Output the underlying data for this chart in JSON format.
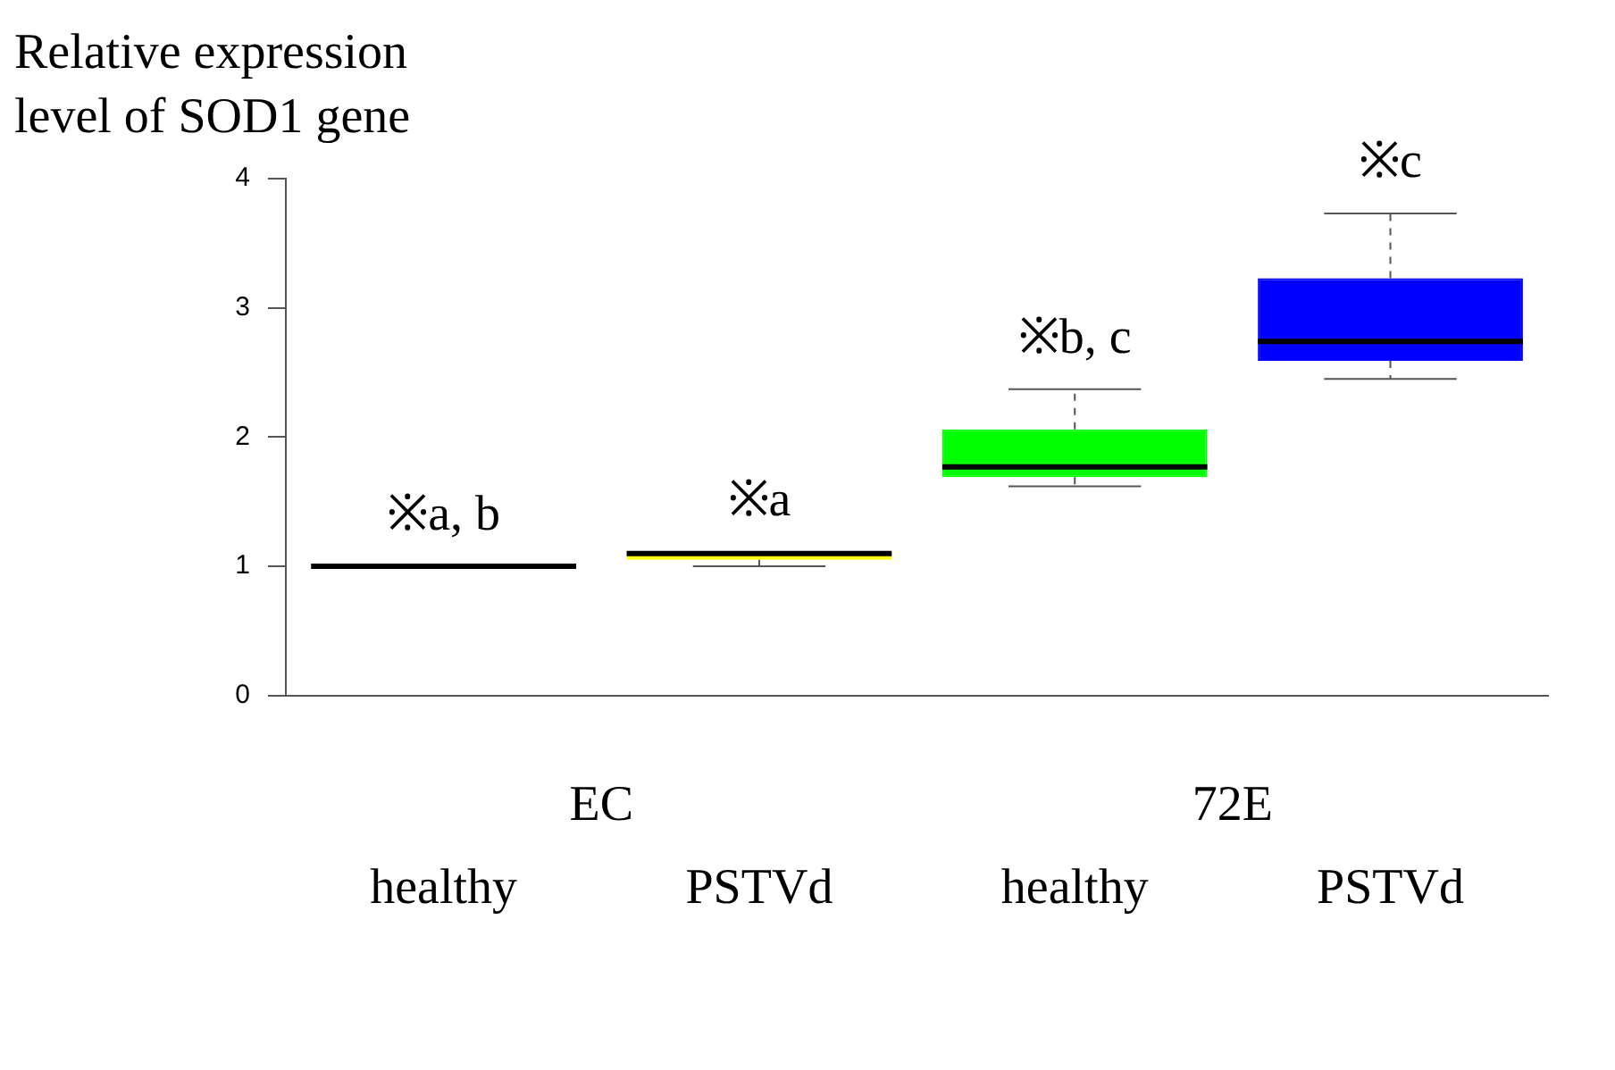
{
  "chart_data": {
    "type": "box",
    "ylabel": "Relative expression\nlevel of SOD1 gene",
    "categories": [
      "healthy",
      "PSTVd",
      "healthy",
      "PSTVd"
    ],
    "boxes": [
      {
        "low": 1,
        "q1": 1,
        "median": 1,
        "q3": 1,
        "high": 1
      },
      {
        "low": 1.0,
        "q1": 1.05,
        "median": 1.1,
        "q3": 1.11,
        "high": 1.11
      },
      {
        "low": 1.62,
        "q1": 1.69,
        "median": 1.77,
        "q3": 2.06,
        "high": 2.37
      },
      {
        "low": 2.45,
        "q1": 2.59,
        "median": 2.74,
        "q3": 3.23,
        "high": 3.73
      }
    ],
    "colors": [
      "#000000",
      "#ffff00",
      "#00ff00",
      "#0000ff"
    ],
    "annotations": [
      "※a, b",
      "※a",
      "※b, c",
      "※c",
      "EC",
      "72E"
    ],
    "ylim": [
      0,
      4
    ],
    "yticks": [
      0,
      1,
      2,
      3,
      4
    ],
    "grid": false
  }
}
